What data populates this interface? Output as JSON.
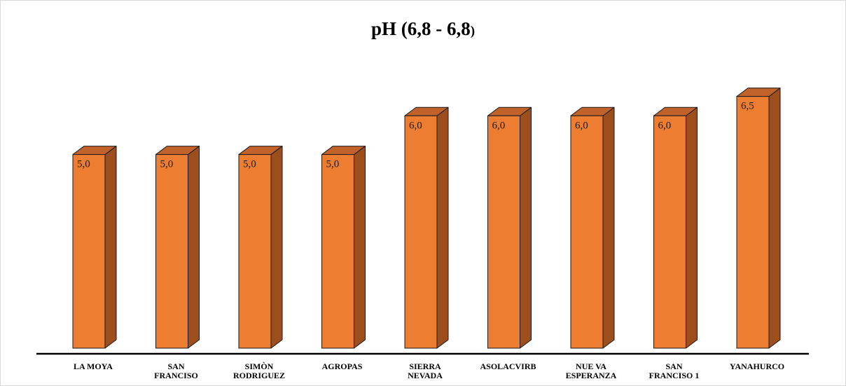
{
  "chart_data": {
    "type": "bar",
    "title": "pH (6,8 - 6,8",
    "title_close": ")",
    "categories": [
      [
        "LA MOYA"
      ],
      [
        "SAN",
        "FRANCISO"
      ],
      [
        "SIMÒN",
        "RODRIGUEZ"
      ],
      [
        "AGROPAS"
      ],
      [
        "SIERRA",
        "NEVADA"
      ],
      [
        "ASOLACVIRB"
      ],
      [
        "NUE VA",
        "ESPERANZA"
      ],
      [
        "SAN",
        "FRANCISO 1"
      ],
      [
        "YANAHURCO"
      ]
    ],
    "values": [
      5.0,
      5.0,
      5.0,
      5.0,
      6.0,
      6.0,
      6.0,
      6.0,
      6.5
    ],
    "value_labels": [
      "5,0",
      "5,0",
      "5,0",
      "5,0",
      "6,0",
      "6,0",
      "6,0",
      "6,0",
      "6,5"
    ],
    "ylim": [
      0,
      7.0
    ],
    "style": "3d-column",
    "grid": false,
    "legend": "none",
    "colors": {
      "front": "#ED7D31",
      "side": "#9C4E1C",
      "top": "#C0622A",
      "outline": "#1a1a1a",
      "axis": "#000000"
    }
  }
}
